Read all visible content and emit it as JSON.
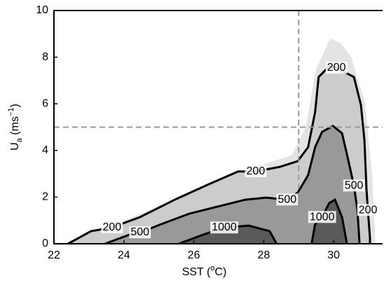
{
  "chart_data": {
    "type": "contour",
    "xlabel_parts": [
      "SST (",
      "o",
      "C)"
    ],
    "ylabel_parts": [
      "U",
      "a",
      " (ms",
      "−1",
      ")"
    ],
    "xlim": [
      22,
      31.4
    ],
    "ylim": [
      0,
      10
    ],
    "xticks": [
      22,
      24,
      26,
      28,
      30
    ],
    "yticks": [
      0,
      2,
      4,
      6,
      8,
      10
    ],
    "ref_lines": {
      "x": 29,
      "y": 5,
      "color": "#999999"
    },
    "regions": [
      {
        "color": "#e4e4e4",
        "x": [
          22.3,
          23,
          24,
          25,
          26,
          27,
          28,
          28.8,
          29.2,
          29.5,
          29.9,
          30.2,
          30.5,
          30.9,
          31.1,
          31.2
        ],
        "y": [
          0,
          0.5,
          1,
          1.6,
          2.2,
          2.9,
          3.4,
          3.8,
          5,
          7.5,
          8.8,
          8.6,
          8,
          6,
          3,
          0
        ]
      }
    ],
    "contours": [
      {
        "level": 200,
        "fill": "#cccccc",
        "x": [
          22.4,
          23.06,
          23.66,
          24.46,
          25.47,
          26.47,
          27.27,
          27.77,
          28.47,
          28.97,
          29.27,
          29.47,
          29.57,
          29.87,
          30.08,
          30.58,
          30.78,
          30.88,
          30.94,
          30.98,
          31.04,
          31.04
        ],
        "y": [
          0,
          0.54,
          0.7,
          1.14,
          1.9,
          2.58,
          3.1,
          3.1,
          3.3,
          3.54,
          4.14,
          5.65,
          7.15,
          7.6,
          7.54,
          7.15,
          5.95,
          4.44,
          2.34,
          1.44,
          0.24,
          0
        ],
        "labels": [
          {
            "x": 23.66,
            "y": 0.7
          },
          {
            "x": 27.77,
            "y": 3.1
          },
          {
            "x": 30.08,
            "y": 7.54
          },
          {
            "x": 30.98,
            "y": 1.44
          }
        ]
      },
      {
        "level": 500,
        "fill": "#999999",
        "x": [
          23.46,
          24.16,
          24.46,
          25.07,
          25.87,
          26.67,
          27.47,
          28.07,
          28.67,
          28.97,
          29.27,
          29.47,
          29.67,
          29.98,
          30.24,
          30.38,
          30.58,
          30.68,
          30.74
        ],
        "y": [
          0,
          0.39,
          0.48,
          0.84,
          1.29,
          1.59,
          1.89,
          1.98,
          1.89,
          2.19,
          2.94,
          4.14,
          4.8,
          5.05,
          4.74,
          3.84,
          2.49,
          1.44,
          0
        ],
        "labels": [
          {
            "x": 24.46,
            "y": 0.48
          },
          {
            "x": 28.67,
            "y": 1.89
          },
          {
            "x": 30.58,
            "y": 2.49
          }
        ]
      },
      {
        "level": 1000,
        "fill": "#5a5a5a",
        "x": [
          25.57,
          26.27,
          26.87,
          27.57,
          28.17,
          28.37
        ],
        "y": [
          0,
          0.39,
          0.69,
          0.78,
          0.54,
          0
        ],
        "labels": [
          {
            "x": 26.87,
            "y": 0.69
          }
        ]
      },
      {
        "level": 1000,
        "fill": "#5a5a5a",
        "x": [
          29.37,
          29.47,
          29.67,
          29.87,
          30.04,
          30.24,
          30.38
        ],
        "y": [
          0,
          0.84,
          1.14,
          1.74,
          1.89,
          1.14,
          0
        ],
        "labels": [
          {
            "x": 29.67,
            "y": 1.14
          }
        ]
      }
    ]
  }
}
